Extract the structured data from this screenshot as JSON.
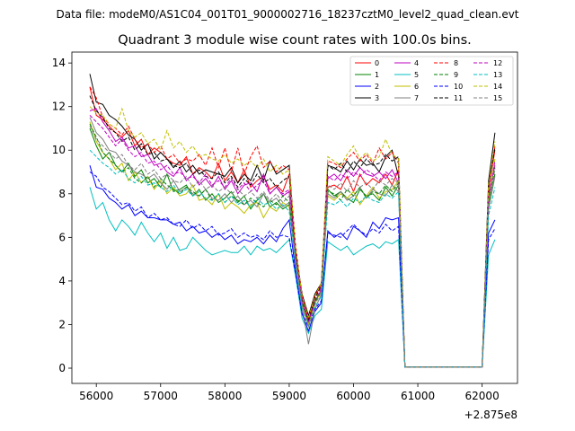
{
  "chart_data": {
    "type": "line",
    "suptitle": "Data file: modeM0/AS1C04_001T01_9000002716_18237cztM0_level2_quad_clean.evt",
    "title": "Quadrant 3 module wise count rates with 100.0s bins.",
    "xlabel": "",
    "ylabel": "",
    "x_offset_label": "+2.875e8",
    "xlim": [
      55620,
      62550
    ],
    "ylim": [
      -0.7,
      14.5
    ],
    "xticks": [
      56000,
      57000,
      58000,
      59000,
      60000,
      61000,
      62000
    ],
    "xtick_labels": [
      "56000",
      "57000",
      "58000",
      "59000",
      "60000",
      "61000",
      "62000"
    ],
    "yticks": [
      0,
      2,
      4,
      6,
      8,
      10,
      12,
      14
    ],
    "ytick_labels": [
      "0",
      "2",
      "4",
      "6",
      "8",
      "10",
      "12",
      "14"
    ],
    "legend_position": "top-right",
    "grid": false,
    "x": [
      55900,
      56000,
      56100,
      56200,
      56300,
      56400,
      56500,
      56600,
      56700,
      56800,
      56900,
      57000,
      57100,
      57200,
      57300,
      57400,
      57500,
      57600,
      57700,
      57800,
      57900,
      58000,
      58100,
      58200,
      58300,
      58400,
      58500,
      58600,
      58700,
      58800,
      58900,
      59000,
      59100,
      59200,
      59300,
      59400,
      59500,
      59600,
      59700,
      59800,
      59900,
      60000,
      60100,
      60200,
      60300,
      60400,
      60500,
      60600,
      60700,
      60800,
      60900,
      61000,
      61100,
      61200,
      61300,
      61400,
      61500,
      61600,
      61700,
      61800,
      61900,
      62000,
      62100,
      62200
    ],
    "series": [
      {
        "name": "0",
        "color": "#ff0000",
        "dash": "solid",
        "values": [
          12.9,
          11.6,
          11.4,
          11.1,
          10.8,
          10.6,
          10.9,
          10.2,
          10.5,
          9.8,
          10.1,
          9.9,
          9.6,
          9.4,
          9.3,
          9.7,
          8.9,
          9.2,
          9.0,
          8.7,
          9.4,
          8.6,
          9.0,
          8.5,
          9.1,
          8.3,
          8.6,
          8.8,
          8.2,
          8.4,
          8.1,
          8.9,
          5.2,
          3.4,
          2.2,
          3.3,
          3.8,
          8.3,
          8.4,
          8.2,
          8.8,
          8.1,
          8.9,
          8.4,
          8.7,
          8.5,
          8.9,
          8.4,
          9.1,
          0.05,
          0.05,
          0.05,
          0.05,
          0.05,
          0.05,
          0.05,
          0.05,
          0.05,
          0.05,
          0.05,
          0.05,
          0.05,
          8.2,
          10.0
        ]
      },
      {
        "name": "1",
        "color": "#008000",
        "dash": "solid",
        "values": [
          11.0,
          10.2,
          9.6,
          9.9,
          9.3,
          9.0,
          9.4,
          8.8,
          9.1,
          8.5,
          8.7,
          8.3,
          8.9,
          8.1,
          8.2,
          8.4,
          7.9,
          8.2,
          7.7,
          8.0,
          7.6,
          7.8,
          8.1,
          7.6,
          7.9,
          7.3,
          7.7,
          8.0,
          7.4,
          7.6,
          7.3,
          7.5,
          4.9,
          3.0,
          2.1,
          3.1,
          3.5,
          8.2,
          7.9,
          8.1,
          7.8,
          7.6,
          8.2,
          7.9,
          8.0,
          7.7,
          8.3,
          7.9,
          8.4,
          0.05,
          0.05,
          0.05,
          0.05,
          0.05,
          0.05,
          0.05,
          0.05,
          0.05,
          0.05,
          0.05,
          0.05,
          0.05,
          7.4,
          8.9
        ]
      },
      {
        "name": "2",
        "color": "#0000ff",
        "dash": "solid",
        "values": [
          9.3,
          8.3,
          8.2,
          7.8,
          7.6,
          7.3,
          7.5,
          7.0,
          7.2,
          6.9,
          6.9,
          6.8,
          6.8,
          6.6,
          6.7,
          6.3,
          6.5,
          6.2,
          6.3,
          6.0,
          6.2,
          5.9,
          6.1,
          5.7,
          5.9,
          5.8,
          6.0,
          5.7,
          6.1,
          5.8,
          6.4,
          6.8,
          4.4,
          2.5,
          1.7,
          2.6,
          3.0,
          6.3,
          6.0,
          6.2,
          5.9,
          6.5,
          6.3,
          6.0,
          6.7,
          6.4,
          6.9,
          6.8,
          6.9,
          0.05,
          0.05,
          0.05,
          0.05,
          0.05,
          0.05,
          0.05,
          0.05,
          0.05,
          0.05,
          0.05,
          0.05,
          0.05,
          6.2,
          6.8
        ]
      },
      {
        "name": "3",
        "color": "#000000",
        "dash": "solid",
        "values": [
          13.5,
          12.2,
          12.1,
          11.6,
          11.4,
          11.1,
          10.7,
          10.5,
          10.0,
          10.3,
          9.6,
          9.9,
          9.6,
          9.2,
          9.5,
          9.0,
          9.3,
          8.9,
          9.1,
          9.0,
          8.9,
          8.8,
          9.2,
          8.5,
          8.9,
          8.6,
          9.3,
          8.6,
          9.5,
          8.9,
          9.1,
          9.3,
          5.4,
          3.4,
          2.4,
          3.4,
          3.9,
          9.3,
          9.2,
          9.0,
          9.5,
          9.1,
          9.6,
          9.3,
          9.4,
          9.0,
          9.7,
          10.0,
          8.8,
          0.05,
          0.05,
          0.05,
          0.05,
          0.05,
          0.05,
          0.05,
          0.05,
          0.05,
          0.05,
          0.05,
          0.05,
          0.05,
          8.6,
          10.8
        ]
      },
      {
        "name": "4",
        "color": "#bf00bf",
        "dash": "solid",
        "values": [
          11.8,
          11.9,
          11.3,
          10.9,
          10.4,
          10.6,
          10.1,
          10.2,
          9.7,
          9.8,
          9.3,
          9.4,
          9.0,
          8.8,
          9.2,
          8.6,
          8.9,
          8.4,
          8.7,
          8.3,
          8.8,
          8.2,
          8.6,
          8.0,
          8.4,
          8.5,
          8.1,
          8.9,
          8.0,
          8.3,
          7.9,
          8.1,
          5.0,
          3.1,
          2.0,
          3.0,
          3.6,
          8.7,
          8.9,
          8.6,
          9.1,
          8.8,
          9.2,
          8.9,
          8.8,
          9.0,
          8.7,
          9.1,
          8.5,
          0.05,
          0.05,
          0.05,
          0.05,
          0.05,
          0.05,
          0.05,
          0.05,
          0.05,
          0.05,
          0.05,
          0.05,
          0.05,
          7.9,
          9.3
        ]
      },
      {
        "name": "5",
        "color": "#00bfbf",
        "dash": "solid",
        "values": [
          8.3,
          7.3,
          7.6,
          6.8,
          6.3,
          6.8,
          6.5,
          6.1,
          6.7,
          6.2,
          5.8,
          6.2,
          5.5,
          6.0,
          5.4,
          5.5,
          6.0,
          5.7,
          5.4,
          5.2,
          5.3,
          5.4,
          5.3,
          5.3,
          5.6,
          5.2,
          5.6,
          5.4,
          5.5,
          5.3,
          5.6,
          5.9,
          4.2,
          2.3,
          1.6,
          2.4,
          2.7,
          5.8,
          5.6,
          5.4,
          5.6,
          5.2,
          5.4,
          5.6,
          5.7,
          5.5,
          5.8,
          5.7,
          5.9,
          0.05,
          0.05,
          0.05,
          0.05,
          0.05,
          0.05,
          0.05,
          0.05,
          0.05,
          0.05,
          0.05,
          0.05,
          0.05,
          5.2,
          5.9
        ]
      },
      {
        "name": "6",
        "color": "#bfbf00",
        "dash": "solid",
        "values": [
          11.3,
          10.4,
          9.9,
          9.6,
          9.1,
          9.4,
          8.6,
          9.0,
          8.5,
          8.8,
          8.2,
          8.6,
          8.0,
          8.3,
          7.9,
          8.0,
          8.4,
          7.7,
          7.8,
          7.5,
          8.0,
          7.3,
          7.6,
          7.4,
          7.1,
          7.5,
          7.6,
          6.9,
          7.4,
          7.2,
          7.6,
          7.4,
          4.9,
          3.0,
          2.0,
          3.0,
          3.5,
          7.9,
          7.7,
          8.0,
          7.8,
          8.1,
          7.5,
          7.9,
          8.3,
          7.8,
          8.1,
          8.2,
          8.6,
          0.05,
          0.05,
          0.05,
          0.05,
          0.05,
          0.05,
          0.05,
          0.05,
          0.05,
          0.05,
          0.05,
          0.05,
          0.05,
          7.6,
          9.6
        ]
      },
      {
        "name": "7",
        "color": "#808080",
        "dash": "solid",
        "values": [
          11.5,
          10.8,
          10.5,
          10.0,
          9.9,
          9.5,
          9.3,
          9.0,
          8.9,
          8.7,
          8.9,
          8.5,
          8.2,
          8.6,
          8.1,
          8.3,
          8.0,
          7.9,
          8.2,
          7.8,
          7.7,
          8.0,
          7.6,
          7.9,
          7.5,
          7.7,
          7.4,
          8.0,
          7.6,
          7.8,
          7.4,
          7.6,
          4.7,
          2.8,
          1.1,
          2.7,
          3.4,
          8.0,
          7.8,
          8.1,
          7.7,
          7.9,
          8.3,
          7.8,
          8.2,
          8.0,
          7.9,
          8.4,
          8.1,
          0.05,
          0.05,
          0.05,
          0.05,
          0.05,
          0.05,
          0.05,
          0.05,
          0.05,
          0.05,
          0.05,
          0.05,
          0.05,
          7.3,
          8.8
        ]
      },
      {
        "name": "8",
        "color": "#ff0000",
        "dash": "dashed",
        "values": [
          12.9,
          12.4,
          11.5,
          11.2,
          11.0,
          10.7,
          11.1,
          10.5,
          10.1,
          10.3,
          9.9,
          10.2,
          9.6,
          9.8,
          9.4,
          9.6,
          9.5,
          9.8,
          9.3,
          10.1,
          9.2,
          10.1,
          9.0,
          10.1,
          8.9,
          9.7,
          10.2,
          9.2,
          9.5,
          9.0,
          9.3,
          9.1,
          5.6,
          3.3,
          2.3,
          3.3,
          3.9,
          9.5,
          9.4,
          9.2,
          9.6,
          9.9,
          9.5,
          9.8,
          9.4,
          10.1,
          9.6,
          9.9,
          9.4,
          0.05,
          0.05,
          0.05,
          0.05,
          0.05,
          0.05,
          0.05,
          0.05,
          0.05,
          0.05,
          0.05,
          0.05,
          0.05,
          8.1,
          10.2
        ]
      },
      {
        "name": "9",
        "color": "#008000",
        "dash": "dashed",
        "values": [
          11.2,
          10.6,
          9.9,
          9.6,
          9.3,
          9.0,
          9.2,
          8.7,
          8.5,
          8.8,
          8.3,
          8.7,
          8.4,
          8.2,
          8.0,
          8.3,
          8.1,
          7.9,
          8.2,
          7.7,
          8.0,
          7.6,
          7.9,
          7.7,
          7.5,
          7.8,
          7.6,
          7.4,
          7.7,
          7.5,
          7.9,
          7.6,
          5.1,
          3.0,
          2.1,
          3.0,
          3.6,
          8.1,
          8.0,
          7.7,
          8.2,
          7.9,
          8.3,
          7.8,
          8.1,
          8.0,
          8.4,
          8.1,
          8.5,
          0.05,
          0.05,
          0.05,
          0.05,
          0.05,
          0.05,
          0.05,
          0.05,
          0.05,
          0.05,
          0.05,
          0.05,
          0.05,
          7.6,
          9.2
        ]
      },
      {
        "name": "10",
        "color": "#0000ff",
        "dash": "dashed",
        "values": [
          9.0,
          8.8,
          8.3,
          8.1,
          7.8,
          7.5,
          7.6,
          7.2,
          7.4,
          6.9,
          7.1,
          6.8,
          6.9,
          6.6,
          6.5,
          6.8,
          6.4,
          6.6,
          6.3,
          6.5,
          6.1,
          6.2,
          6.4,
          6.0,
          6.2,
          6.0,
          6.1,
          5.9,
          6.3,
          6.0,
          6.1,
          6.0,
          4.3,
          2.5,
          1.9,
          2.7,
          3.1,
          6.2,
          6.1,
          6.0,
          6.3,
          6.6,
          6.3,
          6.1,
          6.4,
          6.2,
          6.6,
          6.3,
          6.5,
          0.05,
          0.05,
          0.05,
          0.05,
          0.05,
          0.05,
          0.05,
          0.05,
          0.05,
          0.05,
          0.05,
          0.05,
          0.05,
          5.9,
          6.4
        ]
      },
      {
        "name": "11",
        "color": "#000000",
        "dash": "dashed",
        "values": [
          12.5,
          11.8,
          11.5,
          11.0,
          10.8,
          10.4,
          10.6,
          10.0,
          10.3,
          9.8,
          9.9,
          9.5,
          9.6,
          9.3,
          9.2,
          9.4,
          8.9,
          9.1,
          8.8,
          8.7,
          9.0,
          8.5,
          8.8,
          8.3,
          8.7,
          8.4,
          8.9,
          8.5,
          8.7,
          8.3,
          8.6,
          8.8,
          5.3,
          3.2,
          2.2,
          3.2,
          3.8,
          9.3,
          9.1,
          9.4,
          9.0,
          9.5,
          9.2,
          9.6,
          9.3,
          9.4,
          9.8,
          9.5,
          9.7,
          0.05,
          0.05,
          0.05,
          0.05,
          0.05,
          0.05,
          0.05,
          0.05,
          0.05,
          0.05,
          0.05,
          0.05,
          0.05,
          8.3,
          10.1
        ]
      },
      {
        "name": "12",
        "color": "#bf00bf",
        "dash": "dashed",
        "values": [
          11.6,
          11.3,
          11.0,
          10.6,
          10.2,
          10.5,
          10.0,
          9.7,
          9.9,
          9.4,
          9.5,
          9.1,
          9.3,
          8.9,
          9.0,
          8.7,
          8.8,
          8.5,
          8.9,
          8.4,
          8.6,
          8.3,
          8.7,
          8.2,
          8.5,
          8.1,
          8.4,
          8.6,
          8.0,
          8.3,
          8.0,
          8.2,
          5.1,
          3.1,
          2.1,
          3.1,
          3.7,
          8.8,
          8.6,
          8.9,
          8.7,
          9.0,
          8.8,
          9.1,
          8.9,
          8.6,
          9.0,
          8.8,
          9.0,
          0.05,
          0.05,
          0.05,
          0.05,
          0.05,
          0.05,
          0.05,
          0.05,
          0.05,
          0.05,
          0.05,
          0.05,
          0.05,
          7.8,
          9.5
        ]
      },
      {
        "name": "13",
        "color": "#00bfbf",
        "dash": "dashed",
        "values": [
          10.0,
          9.7,
          9.4,
          9.2,
          8.9,
          9.1,
          8.7,
          8.5,
          8.8,
          8.4,
          8.5,
          8.3,
          8.1,
          8.4,
          8.0,
          8.2,
          7.9,
          8.1,
          7.8,
          7.7,
          8.0,
          7.6,
          7.9,
          7.5,
          7.7,
          7.4,
          7.8,
          7.5,
          7.6,
          7.3,
          7.5,
          7.2,
          4.8,
          2.8,
          1.9,
          2.8,
          3.3,
          7.6,
          7.5,
          7.7,
          7.4,
          7.8,
          7.6,
          7.9,
          7.7,
          7.6,
          8.0,
          7.8,
          8.1,
          0.05,
          0.05,
          0.05,
          0.05,
          0.05,
          0.05,
          0.05,
          0.05,
          0.05,
          0.05,
          0.05,
          0.05,
          0.05,
          7.0,
          8.3
        ]
      },
      {
        "name": "14",
        "color": "#bfbf00",
        "dash": "dashed",
        "values": [
          12.0,
          11.7,
          11.6,
          11.2,
          11.0,
          11.9,
          10.9,
          10.6,
          10.8,
          10.3,
          10.5,
          10.0,
          10.9,
          10.1,
          10.4,
          9.9,
          10.2,
          9.7,
          9.8,
          9.6,
          9.5,
          9.8,
          9.4,
          9.6,
          9.3,
          9.5,
          9.2,
          9.6,
          9.0,
          9.3,
          8.9,
          9.1,
          5.5,
          3.3,
          2.3,
          3.3,
          3.9,
          9.7,
          9.5,
          9.3,
          9.8,
          10.2,
          9.6,
          9.9,
          9.5,
          9.7,
          10.5,
          9.8,
          9.6,
          0.05,
          0.05,
          0.05,
          0.05,
          0.05,
          0.05,
          0.05,
          0.05,
          0.05,
          0.05,
          0.05,
          0.05,
          0.05,
          8.4,
          10.4
        ]
      },
      {
        "name": "15",
        "color": "#808080",
        "dash": "dashed",
        "values": [
          11.1,
          10.5,
          10.2,
          9.9,
          9.6,
          9.8,
          9.3,
          9.1,
          9.4,
          8.9,
          9.1,
          8.7,
          8.9,
          8.6,
          8.5,
          8.8,
          8.3,
          8.6,
          8.2,
          8.4,
          8.1,
          8.3,
          8.0,
          8.2,
          7.9,
          8.1,
          7.8,
          8.1,
          7.7,
          8.0,
          7.6,
          7.9,
          5.0,
          2.9,
          1.9,
          2.9,
          3.5,
          8.4,
          8.2,
          8.5,
          8.1,
          8.6,
          8.3,
          8.5,
          8.2,
          8.6,
          8.4,
          8.7,
          8.5,
          0.05,
          0.05,
          0.05,
          0.05,
          0.05,
          0.05,
          0.05,
          0.05,
          0.05,
          0.05,
          0.05,
          0.05,
          0.05,
          7.7,
          9.1
        ]
      }
    ]
  }
}
